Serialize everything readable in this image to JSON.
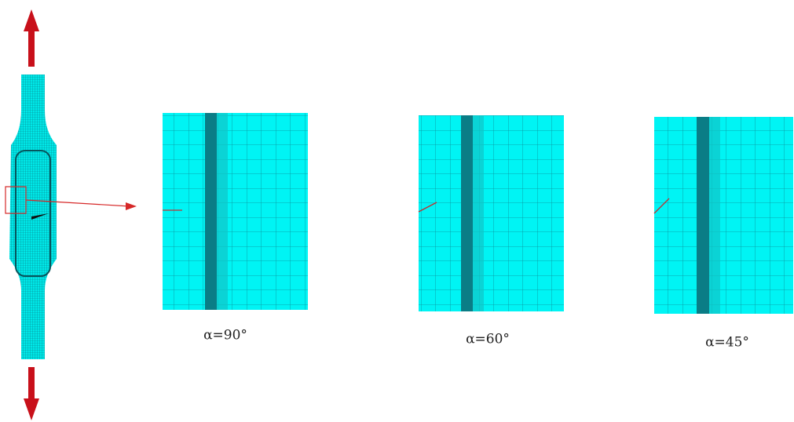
{
  "panels": [
    {
      "label": "α=90°"
    },
    {
      "label": "α=60°"
    },
    {
      "label": "α=45°"
    }
  ]
}
